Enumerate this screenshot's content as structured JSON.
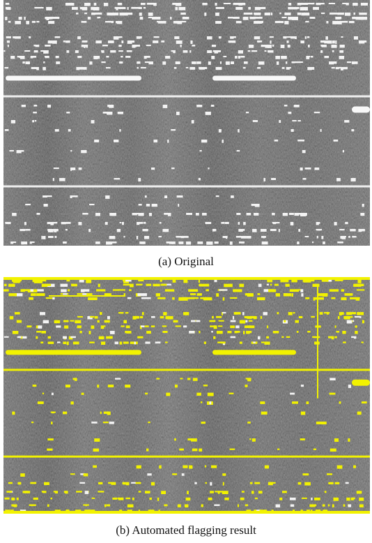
{
  "figure": {
    "panels": [
      {
        "caption": "(a) Original"
      },
      {
        "caption": "(b) Automated flagging result"
      }
    ]
  }
}
